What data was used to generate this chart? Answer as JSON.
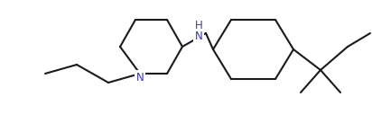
{
  "background": "#ffffff",
  "line_color": "#1a1a1a",
  "line_width": 1.5,
  "figsize": [
    4.12,
    1.37
  ],
  "dpi": 100,
  "xlim": [
    0,
    412
  ],
  "ylim": [
    0,
    137
  ],
  "N_label": "N",
  "NH_label": "H\nN",
  "N_fontsize": 8.5,
  "NH_fontsize": 8.5,
  "N_color": "#3333cc",
  "bond_color": "#1a1a1a"
}
